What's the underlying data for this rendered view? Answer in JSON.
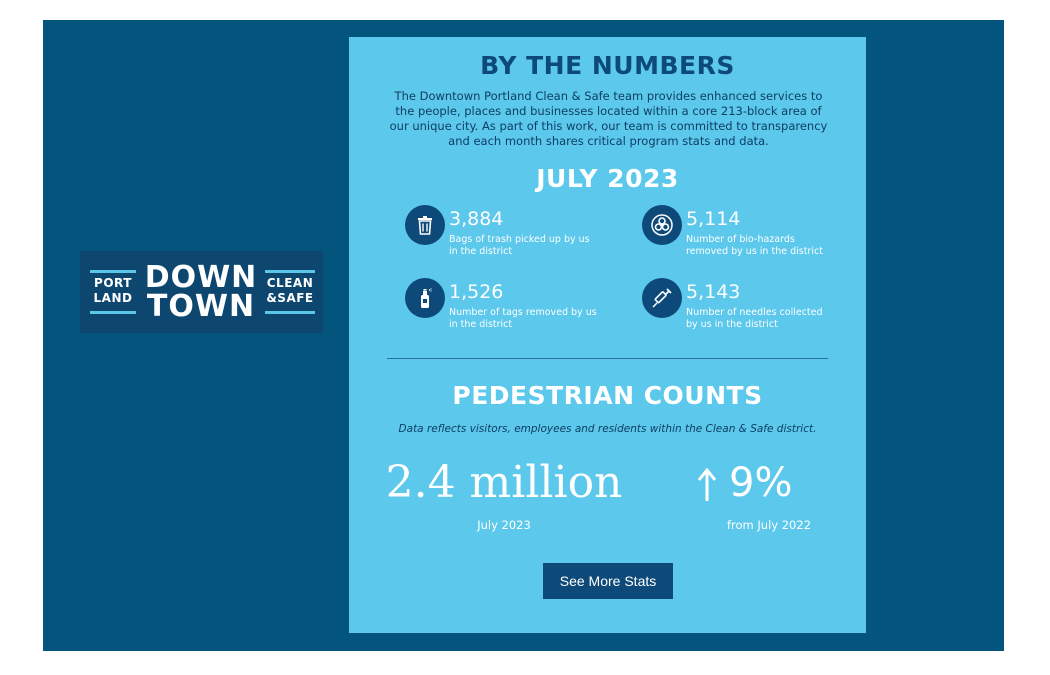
{
  "logo": {
    "left_line1": "PORT",
    "left_line2": "LAND",
    "center_line1": "DOWN",
    "center_line2": "TOWN",
    "right_line1": "CLEAN",
    "right_line2": "&SAFE"
  },
  "card": {
    "title": "BY THE NUMBERS",
    "intro": "The Downtown Portland Clean & Safe team provides enhanced services to the people, places and businesses located within a core 213-block area of our unique city. As part of this work, our team is committed to transparency and each month shares critical program stats and data.",
    "month": "JULY 2023",
    "stats": [
      {
        "icon": "trash-can-icon",
        "value": "3,884",
        "label": "Bags of trash picked up by us in the district"
      },
      {
        "icon": "biohazard-icon",
        "value": "5,114",
        "label": "Number of bio-hazards removed by us in the district"
      },
      {
        "icon": "spray-can-icon",
        "value": "1,526",
        "label": "Number of tags removed by us in the district"
      },
      {
        "icon": "syringe-icon",
        "value": "5,143",
        "label": "Number of needles collected by us in the district"
      }
    ],
    "pedestrian": {
      "title": "PEDESTRIAN COUNTS",
      "note": "Data reflects visitors, employees and residents within the Clean & Safe district.",
      "count": "2.4 million",
      "count_label": "July 2023",
      "change": "9%",
      "change_label": "from July 2022",
      "change_icon": "arrow-up-icon"
    },
    "button_label": "See More Stats"
  },
  "colors": {
    "frame": "#04557e",
    "card": "#5bc8ec",
    "accent": "#0d4a79",
    "logo_bg": "#0d4770"
  }
}
